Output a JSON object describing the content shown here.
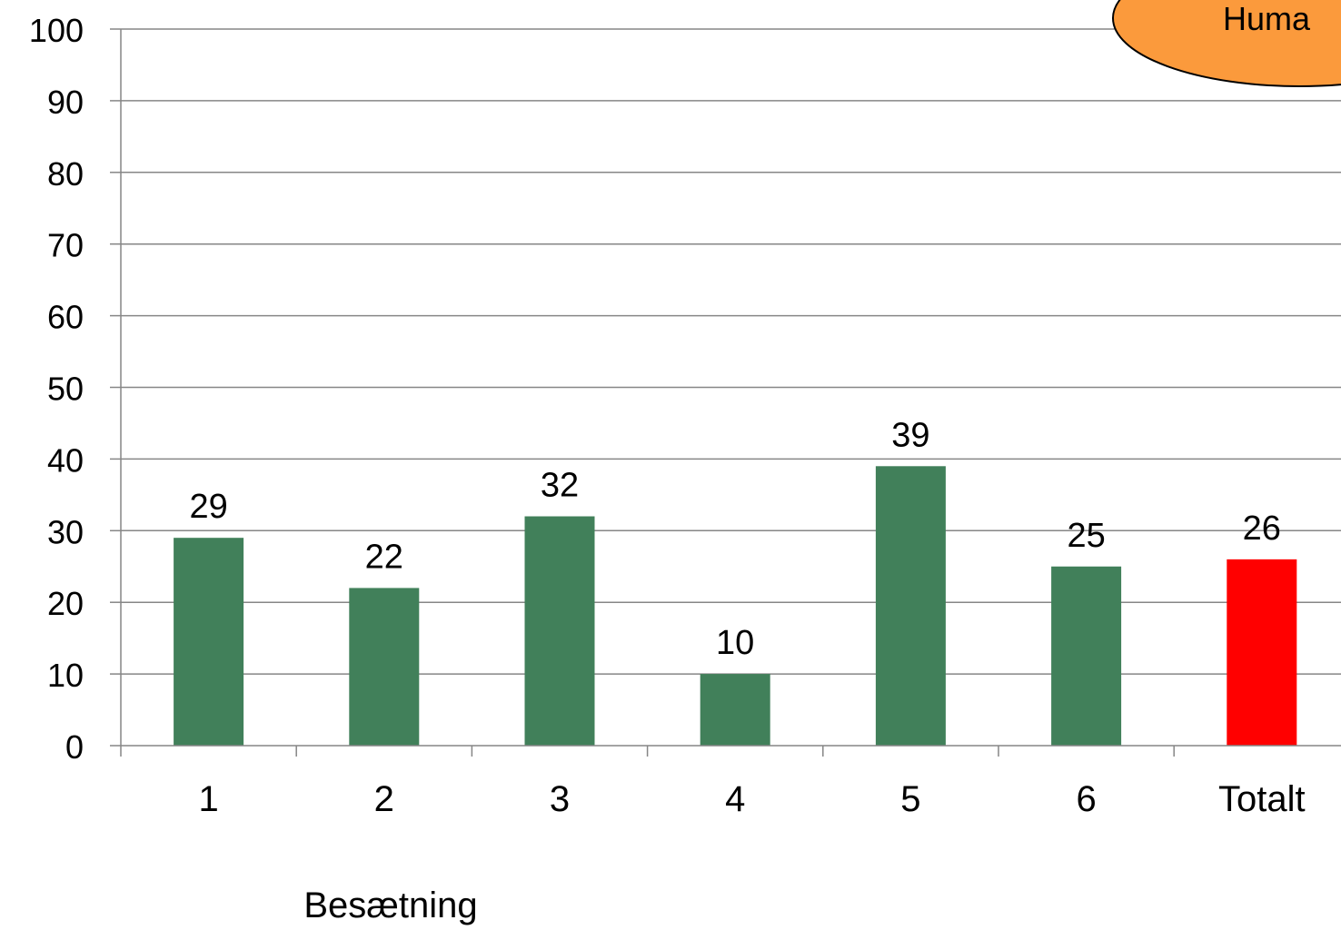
{
  "chart_data": {
    "type": "bar",
    "categories": [
      "1",
      "2",
      "3",
      "4",
      "5",
      "6",
      "Totalt"
    ],
    "values": [
      29,
      22,
      32,
      10,
      39,
      25,
      26
    ],
    "data_labels": [
      "29",
      "22",
      "32",
      "10",
      "39",
      "25",
      "26"
    ],
    "bar_colors": [
      "#41805a",
      "#41805a",
      "#41805a",
      "#41805a",
      "#41805a",
      "#41805a",
      "#ff0000"
    ],
    "ylim": [
      0,
      100
    ],
    "yticks": [
      0,
      10,
      20,
      30,
      40,
      50,
      60,
      70,
      80,
      90,
      100
    ],
    "ytick_labels": [
      "0",
      "10",
      "20",
      "30",
      "40",
      "50",
      "60",
      "70",
      "80",
      "90",
      "100"
    ],
    "xlabel": "Besætning",
    "ylabel": "",
    "title": "",
    "grid": true,
    "legend": "none"
  },
  "callout": {
    "text": "Huma",
    "fill": "#fb9a3c",
    "stroke": "#000000"
  },
  "colors": {
    "gridline": "#868686",
    "axis": "#868686"
  }
}
